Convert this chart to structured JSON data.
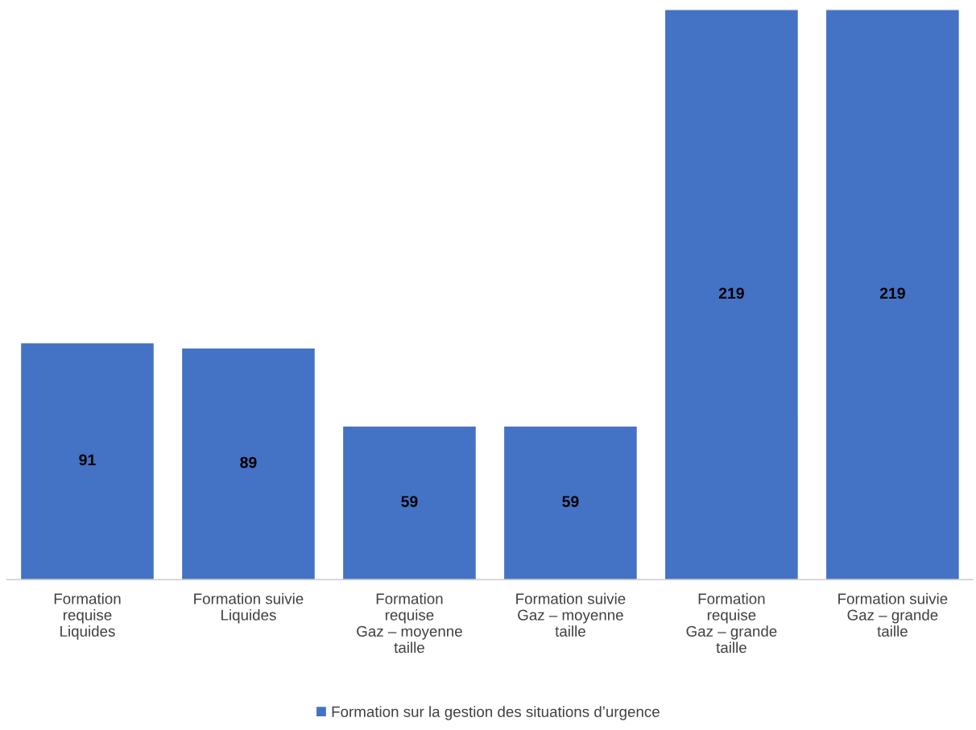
{
  "chart_data": {
    "type": "bar",
    "categories": [
      "Formation\nrequise\nLiquides",
      "Formation suivie\nLiquides",
      "Formation\nrequise\nGaz – moyenne\ntaille",
      "Formation suivie\nGaz – moyenne\ntaille",
      "Formation\nrequise\nGaz – grande\ntaille",
      "Formation suivie\nGaz – grande\ntaille"
    ],
    "series": [
      {
        "name": "Formation sur la gestion des situations d’urgence",
        "color": "#4472c4",
        "values": [
          91,
          89,
          59,
          59,
          219,
          219
        ]
      }
    ],
    "ylim": [
      0,
      219
    ],
    "tick_labels": "x",
    "data_labels": true,
    "legend": "bottom",
    "grid": false
  }
}
